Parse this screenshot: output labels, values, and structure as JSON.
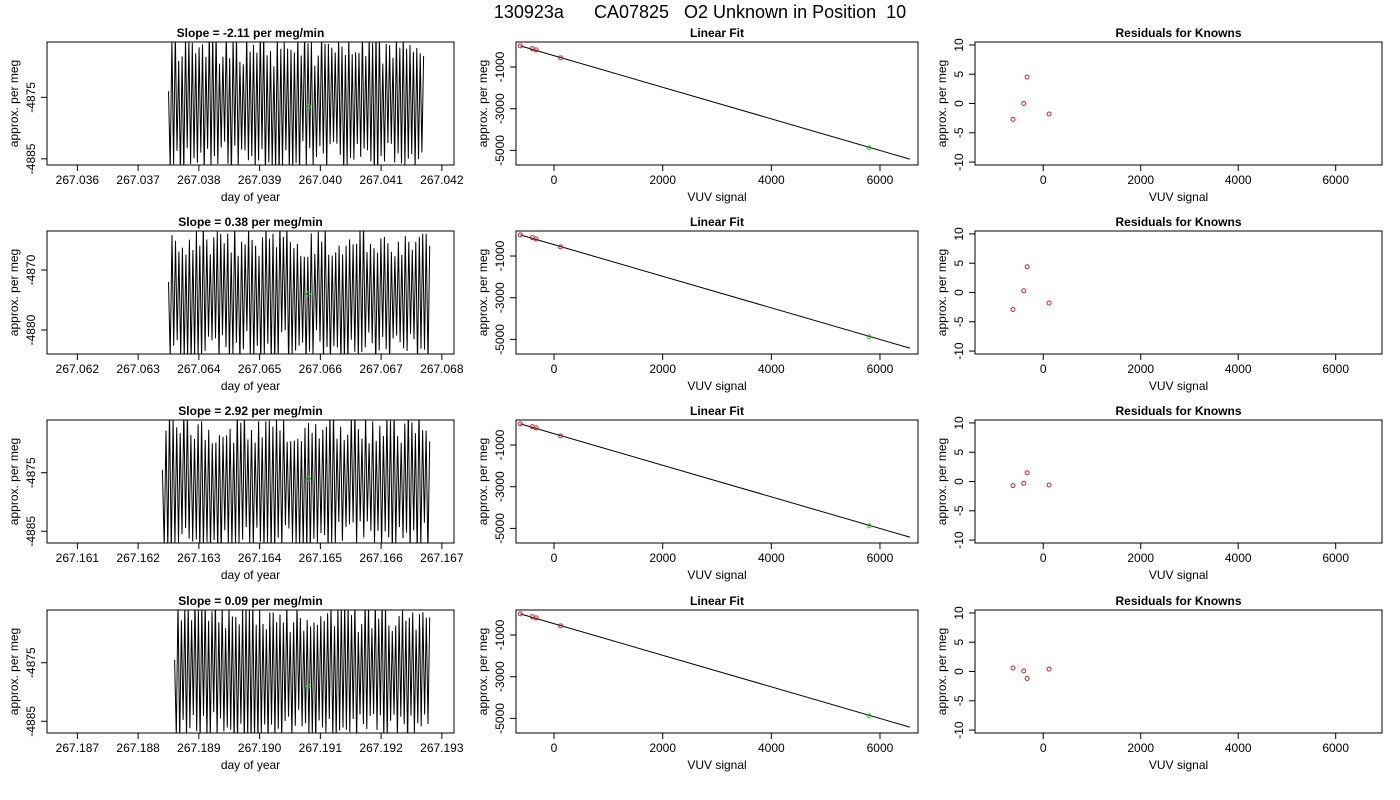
{
  "title": {
    "run": "130923a",
    "tank": "CA07825",
    "description": "O2 Unknown in Position  10"
  },
  "colors": {
    "line": "#000000",
    "known_point": "#cc2222",
    "unknown_point": "#22cc22",
    "frame": "#000000"
  },
  "chart_data": [
    {
      "type": "line",
      "row": 1,
      "col": 1,
      "title": "Slope =  -2.11  per meg/min",
      "xlabel": "day of year",
      "ylabel": "approx. per meg",
      "xlim": [
        267.0355,
        267.0422
      ],
      "ylim": [
        -4886,
        -4866
      ],
      "xticks": [
        267.036,
        267.037,
        267.038,
        267.039,
        267.04,
        267.041,
        267.042
      ],
      "yticks": [
        -4885,
        -4875
      ],
      "series": {
        "x_start": 267.0375,
        "x_end": 267.0417,
        "osc_min": -4888,
        "osc_max": -4864,
        "seed": 11
      },
      "unknown_point": {
        "x": 267.0398,
        "y": -4876.5
      }
    },
    {
      "type": "scatter",
      "row": 1,
      "col": 2,
      "title": "Linear Fit",
      "xlabel": "VUV signal",
      "ylabel": "approx. per meg",
      "xlim": [
        -700,
        6700
      ],
      "ylim": [
        -5700,
        200
      ],
      "xticks": [
        0,
        2000,
        4000,
        6000
      ],
      "yticks": [
        -5000,
        -3000,
        -1000
      ],
      "knowns": [
        [
          -620,
          15
        ],
        [
          -400,
          -120
        ],
        [
          -330,
          -180
        ],
        [
          120,
          -560
        ]
      ],
      "unknown": [
        5800,
        -4880
      ],
      "fit_line": {
        "x": [
          -620,
          6550
        ],
        "y": [
          15,
          -5420
        ]
      }
    },
    {
      "type": "scatter",
      "row": 1,
      "col": 3,
      "title": "Residuals for Knowns",
      "xlabel": "VUV signal",
      "ylabel": "approx. per meg",
      "xlim": [
        -1400,
        6950
      ],
      "ylim": [
        -10.5,
        10.5
      ],
      "xticks": [
        0,
        2000,
        4000,
        6000
      ],
      "yticks": [
        -10,
        -5,
        0,
        5,
        10
      ],
      "points": [
        [
          -620,
          -2.7
        ],
        [
          -400,
          0.0
        ],
        [
          -330,
          4.5
        ],
        [
          120,
          -1.8
        ]
      ]
    },
    {
      "type": "line",
      "row": 2,
      "col": 1,
      "title": "Slope =  0.38  per meg/min",
      "xlabel": "day of year",
      "ylabel": "approx. per meg",
      "xlim": [
        267.0615,
        267.0682
      ],
      "ylim": [
        -4884,
        -4863.5
      ],
      "xticks": [
        267.062,
        267.063,
        267.064,
        267.065,
        267.066,
        267.067,
        267.068
      ],
      "yticks": [
        -4880,
        -4870
      ],
      "series": {
        "x_start": 267.0635,
        "x_end": 267.0678,
        "osc_min": -4886,
        "osc_max": -4862,
        "seed": 23
      },
      "unknown_point": {
        "x": 267.0658,
        "y": -4874
      }
    },
    {
      "type": "scatter",
      "row": 2,
      "col": 2,
      "title": "Linear Fit",
      "xlabel": "VUV signal",
      "ylabel": "approx. per meg",
      "xlim": [
        -700,
        6700
      ],
      "ylim": [
        -5700,
        200
      ],
      "xticks": [
        0,
        2000,
        4000,
        6000
      ],
      "yticks": [
        -5000,
        -3000,
        -1000
      ],
      "knowns": [
        [
          -620,
          15
        ],
        [
          -400,
          -120
        ],
        [
          -330,
          -180
        ],
        [
          120,
          -560
        ]
      ],
      "unknown": [
        5800,
        -4880
      ],
      "fit_line": {
        "x": [
          -620,
          6550
        ],
        "y": [
          15,
          -5420
        ]
      }
    },
    {
      "type": "scatter",
      "row": 2,
      "col": 3,
      "title": "Residuals for Knowns",
      "xlabel": "VUV signal",
      "ylabel": "approx. per meg",
      "xlim": [
        -1400,
        6950
      ],
      "ylim": [
        -10.5,
        10.5
      ],
      "xticks": [
        0,
        2000,
        4000,
        6000
      ],
      "yticks": [
        -10,
        -5,
        0,
        5,
        10
      ],
      "points": [
        [
          -620,
          -2.9
        ],
        [
          -400,
          0.3
        ],
        [
          -330,
          4.4
        ],
        [
          120,
          -1.8
        ]
      ]
    },
    {
      "type": "line",
      "row": 3,
      "col": 1,
      "title": "Slope =  2.92  per meg/min",
      "xlabel": "day of year",
      "ylabel": "approx. per meg",
      "xlim": [
        267.1605,
        267.1672
      ],
      "ylim": [
        -4887,
        -4866
      ],
      "xticks": [
        267.161,
        267.162,
        267.163,
        267.164,
        267.165,
        267.166,
        267.167
      ],
      "yticks": [
        -4885,
        -4875
      ],
      "series": {
        "x_start": 267.1624,
        "x_end": 267.1668,
        "osc_min": -4889,
        "osc_max": -4864,
        "seed": 37
      },
      "unknown_point": {
        "x": 267.1648,
        "y": -4876
      }
    },
    {
      "type": "scatter",
      "row": 3,
      "col": 2,
      "title": "Linear Fit",
      "xlabel": "VUV signal",
      "ylabel": "approx. per meg",
      "xlim": [
        -700,
        6700
      ],
      "ylim": [
        -5700,
        200
      ],
      "xticks": [
        0,
        2000,
        4000,
        6000
      ],
      "yticks": [
        -5000,
        -3000,
        -1000
      ],
      "knowns": [
        [
          -620,
          15
        ],
        [
          -400,
          -120
        ],
        [
          -330,
          -180
        ],
        [
          120,
          -560
        ]
      ],
      "unknown": [
        5800,
        -4880
      ],
      "fit_line": {
        "x": [
          -620,
          6550
        ],
        "y": [
          15,
          -5420
        ]
      }
    },
    {
      "type": "scatter",
      "row": 3,
      "col": 3,
      "title": "Residuals for Knowns",
      "xlabel": "VUV signal",
      "ylabel": "approx. per meg",
      "xlim": [
        -1400,
        6950
      ],
      "ylim": [
        -10.5,
        10.5
      ],
      "xticks": [
        0,
        2000,
        4000,
        6000
      ],
      "yticks": [
        -10,
        -5,
        0,
        5,
        10
      ],
      "points": [
        [
          -620,
          -0.7
        ],
        [
          -400,
          -0.3
        ],
        [
          -330,
          1.5
        ],
        [
          120,
          -0.6
        ]
      ]
    },
    {
      "type": "line",
      "row": 4,
      "col": 1,
      "title": "Slope =  0.09  per meg/min",
      "xlabel": "day of year",
      "ylabel": "approx. per meg",
      "xlim": [
        267.1865,
        267.1932
      ],
      "ylim": [
        -4887,
        -4866
      ],
      "xticks": [
        267.187,
        267.188,
        267.189,
        267.19,
        267.191,
        267.192,
        267.193
      ],
      "yticks": [
        -4885,
        -4875
      ],
      "series": {
        "x_start": 267.1886,
        "x_end": 267.1928,
        "osc_min": -4889,
        "osc_max": -4864,
        "seed": 53
      },
      "unknown_point": {
        "x": 267.1908,
        "y": -4879
      }
    },
    {
      "type": "scatter",
      "row": 4,
      "col": 2,
      "title": "Linear Fit",
      "xlabel": "VUV signal",
      "ylabel": "approx. per meg",
      "xlim": [
        -700,
        6700
      ],
      "ylim": [
        -5700,
        200
      ],
      "xticks": [
        0,
        2000,
        4000,
        6000
      ],
      "yticks": [
        -5000,
        -3000,
        -1000
      ],
      "knowns": [
        [
          -620,
          15
        ],
        [
          -400,
          -120
        ],
        [
          -330,
          -180
        ],
        [
          120,
          -560
        ]
      ],
      "unknown": [
        5800,
        -4880
      ],
      "fit_line": {
        "x": [
          -620,
          6550
        ],
        "y": [
          15,
          -5420
        ]
      }
    },
    {
      "type": "scatter",
      "row": 4,
      "col": 3,
      "title": "Residuals for Knowns",
      "xlabel": "VUV signal",
      "ylabel": "approx. per meg",
      "xlim": [
        -1400,
        6950
      ],
      "ylim": [
        -10.5,
        10.5
      ],
      "xticks": [
        0,
        2000,
        4000,
        6000
      ],
      "yticks": [
        -10,
        -5,
        0,
        5,
        10
      ],
      "points": [
        [
          -620,
          0.6
        ],
        [
          -400,
          0.1
        ],
        [
          -330,
          -1.2
        ],
        [
          120,
          0.4
        ]
      ]
    }
  ]
}
